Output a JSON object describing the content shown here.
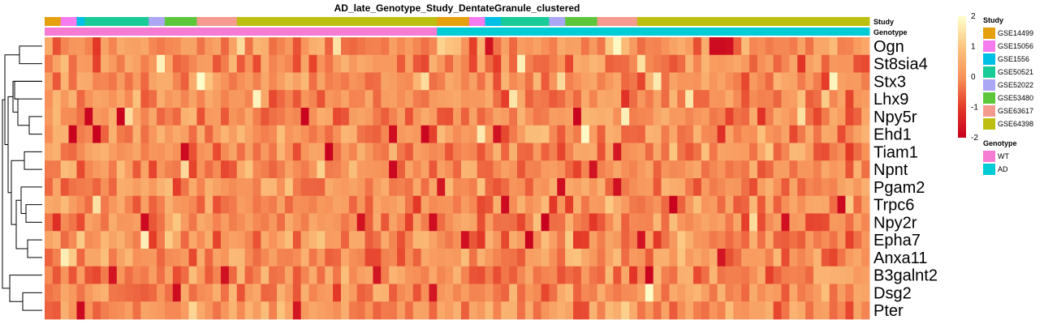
{
  "chart_data": {
    "type": "heatmap",
    "title": "AD_late_Genotype_Study_DentateGranule_clustered",
    "rows": [
      "Ogn",
      "St8sia4",
      "Stx3",
      "Lhx9",
      "Npy5r",
      "Ehd1",
      "Tiam1",
      "Npnt",
      "Pgam2",
      "Trpc6",
      "Npy2r",
      "Epha7",
      "Anxa11",
      "B3galnt2",
      "Dsg2",
      "Pter"
    ],
    "n_columns": 103,
    "color_scale": {
      "min": -2,
      "max": 2,
      "ticks": [
        2,
        1,
        0,
        -1,
        -2
      ],
      "stops": [
        "#C8001E",
        "#E43A28",
        "#F7935A",
        "#FBC57F",
        "#FFFFCC"
      ]
    },
    "annotations": [
      {
        "name": "Study",
        "legend_title": "Study",
        "levels": [
          "GSE14499",
          "GSE15056",
          "GSE1556",
          "GSE50521",
          "GSE52022",
          "GSE53480",
          "GSE63617",
          "GSE64398"
        ],
        "colors": [
          "#E5A00D",
          "#F57BEE",
          "#00C0E6",
          "#19CC97",
          "#ABA7F5",
          "#5CC73A",
          "#F59A8F",
          "#BDBF10"
        ],
        "segments": [
          {
            "level": "GSE14499",
            "count": 2
          },
          {
            "level": "GSE15056",
            "count": 2
          },
          {
            "level": "GSE1556",
            "count": 1
          },
          {
            "level": "GSE50521",
            "count": 8
          },
          {
            "level": "GSE52022",
            "count": 2
          },
          {
            "level": "GSE53480",
            "count": 4
          },
          {
            "level": "GSE63617",
            "count": 5
          },
          {
            "level": "GSE64398",
            "count": 25
          },
          {
            "level": "GSE14499",
            "count": 4
          },
          {
            "level": "GSE15056",
            "count": 2
          },
          {
            "level": "GSE1556",
            "count": 2
          },
          {
            "level": "GSE50521",
            "count": 6
          },
          {
            "level": "GSE52022",
            "count": 2
          },
          {
            "level": "GSE53480",
            "count": 4
          },
          {
            "level": "GSE63617",
            "count": 5
          },
          {
            "level": "GSE64398",
            "count": 29
          }
        ]
      },
      {
        "name": "Genotype",
        "legend_title": "Genotype",
        "levels": [
          "WT",
          "AD"
        ],
        "colors": [
          "#F57BD3",
          "#00CCD6"
        ],
        "segments": [
          {
            "level": "WT",
            "count": 49
          },
          {
            "level": "AD",
            "count": 54
          }
        ]
      }
    ],
    "dendrogram": {
      "merges": [
        [
          0,
          1
        ],
        [
          2,
          3
        ],
        [
          5,
          4
        ],
        [
          9,
          10
        ],
        [
          8,
          11
        ],
        [
          14,
          15
        ],
        [
          0,
          1
        ],
        [
          5,
          6
        ],
        [
          2,
          5
        ],
        [
          1,
          6
        ],
        [
          10,
          7
        ],
        [
          9,
          8
        ],
        [
          13,
          12
        ],
        [
          6,
          11
        ],
        [
          3,
          14
        ]
      ]
    }
  }
}
